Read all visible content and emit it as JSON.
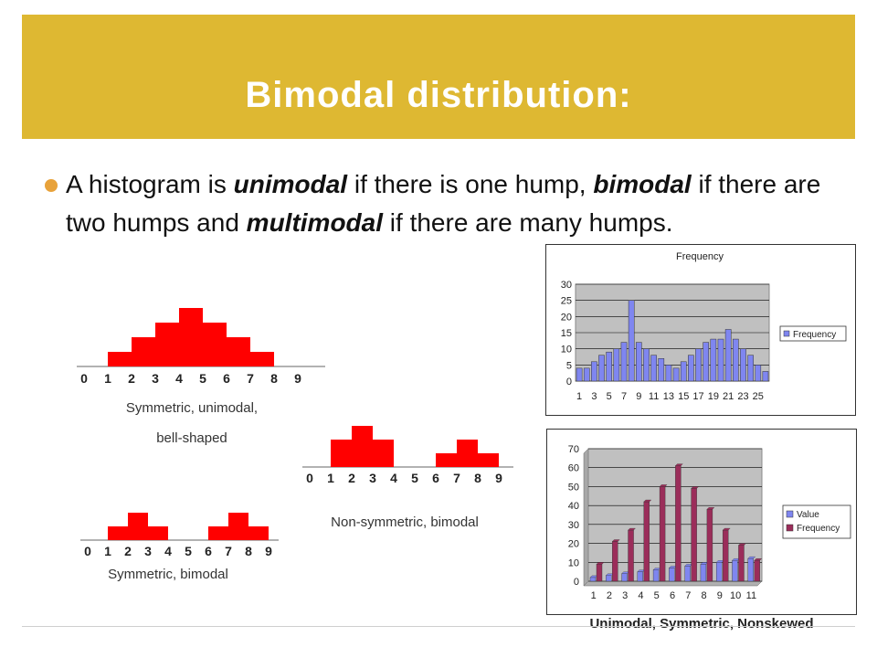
{
  "slide": {
    "title": "Bimodal distribution:",
    "bullet": {
      "t1": "A histogram is ",
      "e1": "unimodal",
      "t2": " if there is one hump, ",
      "e2": "bimodal",
      "t3": " if there are two humps and ",
      "e3": "multimodal",
      "t4": " if there are many humps."
    },
    "footer_caption": "Unimodal, Symmetric, Nonskewed"
  },
  "colors": {
    "accent": "#deb832",
    "bullet": "#e8a23a",
    "hist": "#ff0000",
    "bar_blue": "#7f86f0",
    "bar_maroon": "#9b2d5a"
  },
  "chart_data": [
    {
      "type": "bar",
      "categories": [
        "0",
        "1",
        "2",
        "3",
        "4",
        "5",
        "6",
        "7",
        "8",
        "9"
      ],
      "values": [
        0,
        1,
        2,
        3,
        4,
        3,
        2,
        1,
        0,
        0
      ],
      "caption_line1": "Symmetric, unimodal,",
      "caption_line2": "bell-shaped"
    },
    {
      "type": "bar",
      "categories": [
        "0",
        "1",
        "2",
        "3",
        "4",
        "5",
        "6",
        "7",
        "8",
        "9"
      ],
      "values": [
        0,
        2,
        3,
        2,
        0,
        0,
        1,
        2,
        1,
        0
      ],
      "caption": "Non-symmetric, bimodal"
    },
    {
      "type": "bar",
      "categories": [
        "0",
        "1",
        "2",
        "3",
        "4",
        "5",
        "6",
        "7",
        "8",
        "9"
      ],
      "values": [
        0,
        1,
        2,
        1,
        0,
        0,
        1,
        2,
        1,
        0
      ],
      "caption": "Symmetric, bimodal"
    },
    {
      "type": "bar",
      "title": "Frequency",
      "categories": [
        1,
        2,
        3,
        4,
        5,
        6,
        7,
        8,
        9,
        10,
        11,
        12,
        13,
        14,
        15,
        16,
        17,
        18,
        19,
        20,
        21,
        22,
        23,
        24,
        25,
        26
      ],
      "tick_labels": [
        "1",
        "3",
        "5",
        "7",
        "9",
        "11",
        "13",
        "15",
        "17",
        "19",
        "21",
        "23",
        "25"
      ],
      "values": [
        4,
        4,
        6,
        8,
        9,
        10,
        12,
        25,
        12,
        10,
        8,
        7,
        5,
        4,
        6,
        8,
        10,
        12,
        13,
        13,
        16,
        13,
        10,
        8,
        5,
        3
      ],
      "ylim": [
        0,
        30
      ],
      "yticks": [
        0,
        5,
        10,
        15,
        20,
        25,
        30
      ],
      "legend": [
        "Frequency"
      ],
      "grid": true
    },
    {
      "type": "bar",
      "categories": [
        "1",
        "2",
        "3",
        "4",
        "5",
        "6",
        "7",
        "8",
        "9",
        "10",
        "11"
      ],
      "series": [
        {
          "name": "Value",
          "values": [
            2,
            3,
            4,
            5,
            6,
            7,
            8,
            9,
            10,
            11,
            12
          ]
        },
        {
          "name": "Frequency",
          "values": [
            9,
            21,
            27,
            42,
            50,
            61,
            49,
            38,
            27,
            19,
            11
          ]
        }
      ],
      "ylim": [
        0,
        70
      ],
      "yticks": [
        0,
        10,
        20,
        30,
        40,
        50,
        60,
        70
      ],
      "legend": [
        "Value",
        "Frequency"
      ],
      "grid": true
    }
  ]
}
